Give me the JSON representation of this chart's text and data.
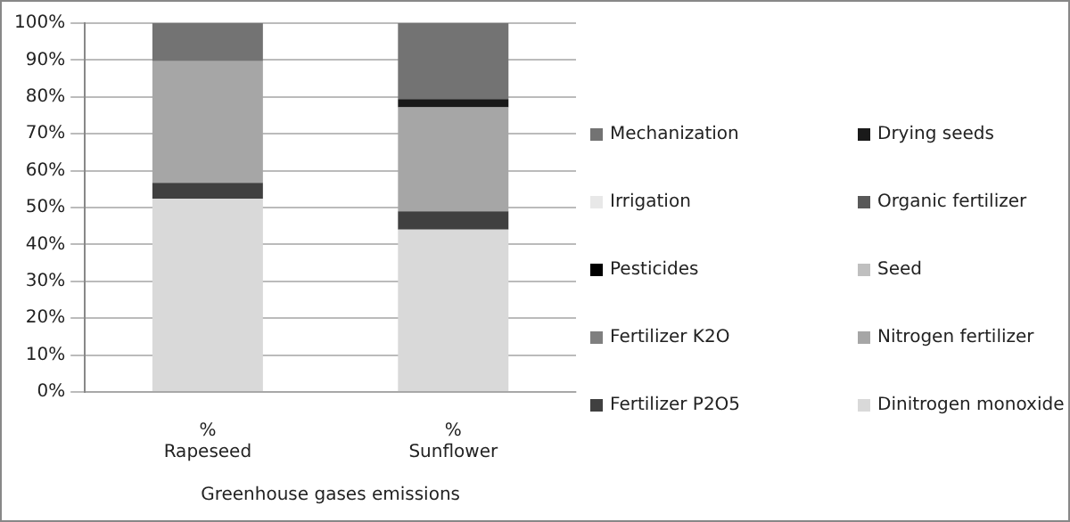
{
  "chart_data": {
    "type": "bar",
    "stacked": true,
    "xlabel": "Greenhouse gases emissions",
    "categories": [
      "%\nRapeseed",
      "%\nSunflower"
    ],
    "series": [
      {
        "name": "Dinitrogen monoxide",
        "color": "#d9d9d9",
        "values": [
          52.4,
          44
        ]
      },
      {
        "name": "Fertilizer P2O5",
        "color": "#404040",
        "values": [
          4.3,
          5
        ]
      },
      {
        "name": "Nitrogen fertilizer",
        "color": "#a6a6a6",
        "values": [
          33,
          28.2
        ]
      },
      {
        "name": "Fertilizer K2O",
        "color": "#7f7f7f",
        "values": [
          0,
          0
        ]
      },
      {
        "name": "Seed",
        "color": "#bfbfbf",
        "values": [
          0,
          0
        ]
      },
      {
        "name": "Pesticides",
        "color": "#000000",
        "values": [
          0,
          0
        ]
      },
      {
        "name": "Organic fertilizer",
        "color": "#595959",
        "values": [
          0,
          0
        ]
      },
      {
        "name": "Irrigation",
        "color": "#e8e8e8",
        "values": [
          0,
          0
        ]
      },
      {
        "name": "Drying seeds",
        "color": "#1a1a1a",
        "values": [
          0,
          2.2
        ]
      },
      {
        "name": "Mechanization",
        "color": "#737373",
        "values": [
          10.3,
          20.6
        ]
      }
    ],
    "ylim": [
      0,
      100
    ],
    "yticks": [
      {
        "value": 0,
        "label": "0%"
      },
      {
        "value": 10,
        "label": "10%"
      },
      {
        "value": 20,
        "label": "20%"
      },
      {
        "value": 30,
        "label": "30%"
      },
      {
        "value": 40,
        "label": "40%"
      },
      {
        "value": 50,
        "label": "50%"
      },
      {
        "value": 60,
        "label": "60%"
      },
      {
        "value": 70,
        "label": "70%"
      },
      {
        "value": 80,
        "label": "80%"
      },
      {
        "value": 90,
        "label": "90%"
      },
      {
        "value": 100,
        "label": "100%"
      }
    ],
    "grid": "y",
    "legend": "right"
  }
}
